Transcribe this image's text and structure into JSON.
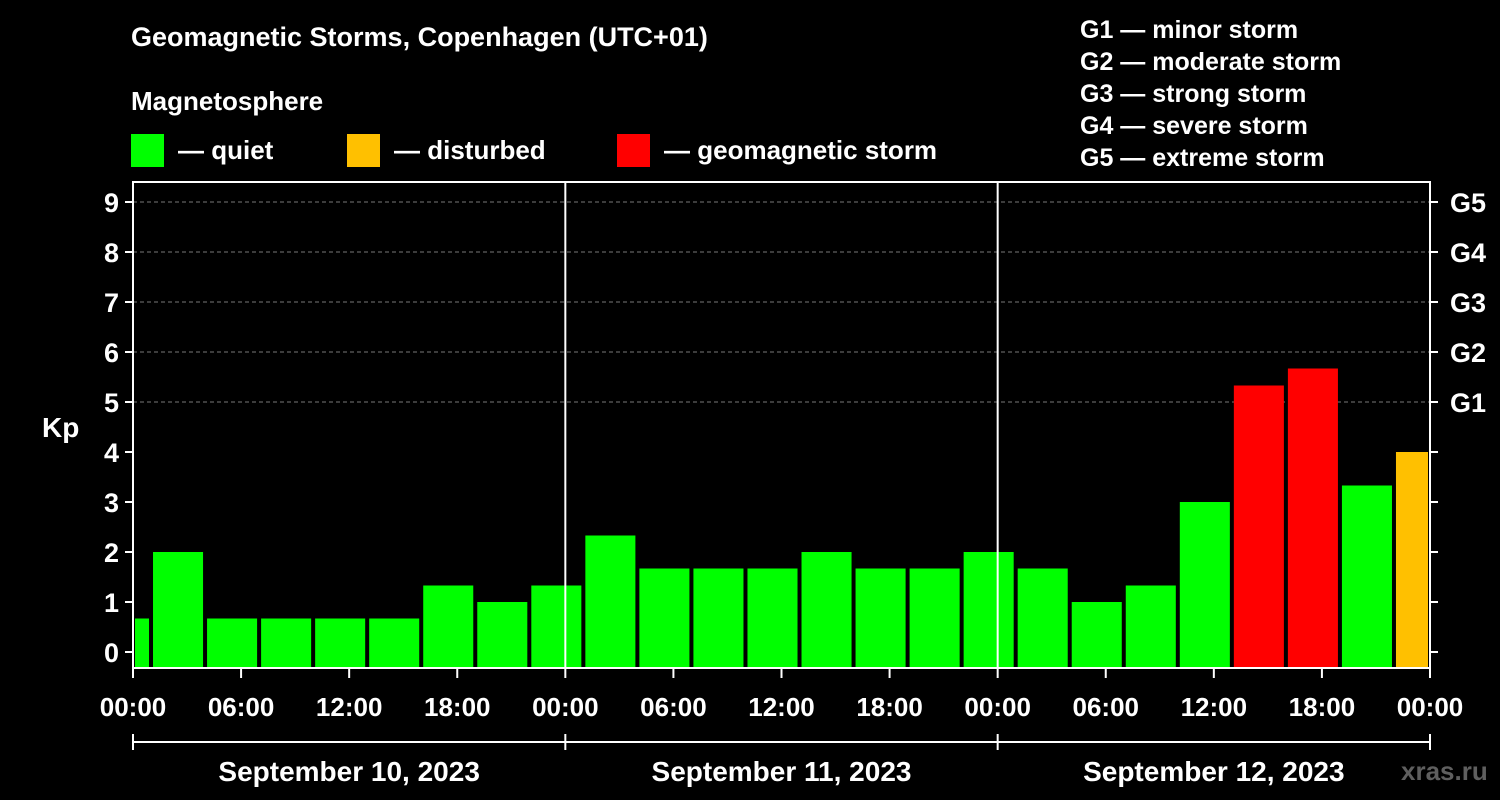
{
  "header": {
    "title": "Geomagnetic Storms, Copenhagen (UTC+01)",
    "subtitle": "Magnetosphere"
  },
  "legend": [
    {
      "label": "— quiet",
      "color": "#00ff00"
    },
    {
      "label": "— disturbed",
      "color": "#ffc000"
    },
    {
      "label": "— geomagnetic storm",
      "color": "#ff0000"
    }
  ],
  "storm_scale": [
    "G1 — minor storm",
    "G2 — moderate storm",
    "G3 — strong storm",
    "G4 — severe storm",
    "G5 — extreme storm"
  ],
  "watermark": "xras.ru",
  "chart_data": {
    "type": "bar",
    "ylabel": "Kp",
    "ylim": [
      0,
      9
    ],
    "y_ticks": [
      "0",
      "1",
      "2",
      "3",
      "4",
      "5",
      "6",
      "7",
      "8",
      "9"
    ],
    "right_ticks": [
      {
        "kp": 5,
        "label": "G1"
      },
      {
        "kp": 6,
        "label": "G2"
      },
      {
        "kp": 7,
        "label": "G3"
      },
      {
        "kp": 8,
        "label": "G4"
      },
      {
        "kp": 9,
        "label": "G5"
      }
    ],
    "grid": "dashed horizontal at Kp 5-9",
    "x_tick_labels": [
      "00:00",
      "06:00",
      "12:00",
      "18:00",
      "00:00",
      "06:00",
      "12:00",
      "18:00",
      "00:00",
      "06:00",
      "12:00",
      "18:00",
      "00:00"
    ],
    "dates": [
      "September 10, 2023",
      "September 11, 2023",
      "September 12, 2023"
    ],
    "bars": [
      {
        "start": "2023-09-10 00:00",
        "end": "2023-09-10 01:00",
        "kp": 0.67,
        "status": "quiet"
      },
      {
        "start": "2023-09-10 01:00",
        "end": "2023-09-10 04:00",
        "kp": 2.0,
        "status": "quiet"
      },
      {
        "start": "2023-09-10 04:00",
        "end": "2023-09-10 07:00",
        "kp": 0.67,
        "status": "quiet"
      },
      {
        "start": "2023-09-10 07:00",
        "end": "2023-09-10 10:00",
        "kp": 0.67,
        "status": "quiet"
      },
      {
        "start": "2023-09-10 10:00",
        "end": "2023-09-10 13:00",
        "kp": 0.67,
        "status": "quiet"
      },
      {
        "start": "2023-09-10 13:00",
        "end": "2023-09-10 16:00",
        "kp": 0.67,
        "status": "quiet"
      },
      {
        "start": "2023-09-10 16:00",
        "end": "2023-09-10 19:00",
        "kp": 1.33,
        "status": "quiet"
      },
      {
        "start": "2023-09-10 19:00",
        "end": "2023-09-10 22:00",
        "kp": 1.0,
        "status": "quiet"
      },
      {
        "start": "2023-09-10 22:00",
        "end": "2023-09-11 01:00",
        "kp": 1.33,
        "status": "quiet"
      },
      {
        "start": "2023-09-11 01:00",
        "end": "2023-09-11 04:00",
        "kp": 2.33,
        "status": "quiet"
      },
      {
        "start": "2023-09-11 04:00",
        "end": "2023-09-11 07:00",
        "kp": 1.67,
        "status": "quiet"
      },
      {
        "start": "2023-09-11 07:00",
        "end": "2023-09-11 10:00",
        "kp": 1.67,
        "status": "quiet"
      },
      {
        "start": "2023-09-11 10:00",
        "end": "2023-09-11 13:00",
        "kp": 1.67,
        "status": "quiet"
      },
      {
        "start": "2023-09-11 13:00",
        "end": "2023-09-11 16:00",
        "kp": 2.0,
        "status": "quiet"
      },
      {
        "start": "2023-09-11 16:00",
        "end": "2023-09-11 19:00",
        "kp": 1.67,
        "status": "quiet"
      },
      {
        "start": "2023-09-11 19:00",
        "end": "2023-09-11 22:00",
        "kp": 1.67,
        "status": "quiet"
      },
      {
        "start": "2023-09-11 22:00",
        "end": "2023-09-12 01:00",
        "kp": 2.0,
        "status": "quiet"
      },
      {
        "start": "2023-09-12 01:00",
        "end": "2023-09-12 04:00",
        "kp": 1.67,
        "status": "quiet"
      },
      {
        "start": "2023-09-12 04:00",
        "end": "2023-09-12 07:00",
        "kp": 1.0,
        "status": "quiet"
      },
      {
        "start": "2023-09-12 07:00",
        "end": "2023-09-12 10:00",
        "kp": 1.33,
        "status": "quiet"
      },
      {
        "start": "2023-09-12 10:00",
        "end": "2023-09-12 13:00",
        "kp": 3.0,
        "status": "quiet"
      },
      {
        "start": "2023-09-12 13:00",
        "end": "2023-09-12 16:00",
        "kp": 5.33,
        "status": "storm"
      },
      {
        "start": "2023-09-12 16:00",
        "end": "2023-09-12 19:00",
        "kp": 5.67,
        "status": "storm"
      },
      {
        "start": "2023-09-12 19:00",
        "end": "2023-09-12 22:00",
        "kp": 3.33,
        "status": "quiet"
      },
      {
        "start": "2023-09-12 22:00",
        "end": "2023-09-13 00:00",
        "kp": 4.0,
        "status": "disturbed"
      }
    ],
    "status_colors": {
      "quiet": "#00ff00",
      "disturbed": "#ffc000",
      "storm": "#ff0000"
    }
  }
}
